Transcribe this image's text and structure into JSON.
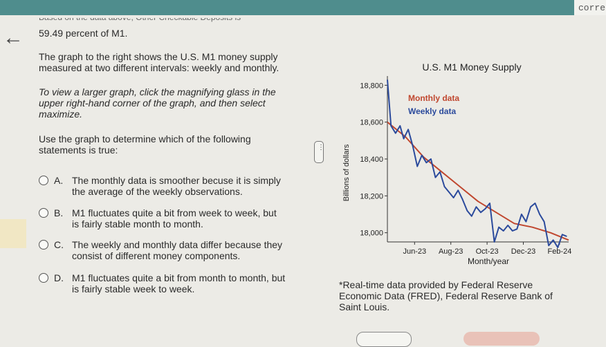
{
  "header": {
    "corner_text": "corre"
  },
  "question": {
    "cutoff_line": "Based on the data above, Other Checkable Deposits is",
    "percent_line": "59.49 percent of M1.",
    "intro": [
      "The graph to the right shows the U.S. M1 money supply",
      "measured at two different intervals: weekly and monthly."
    ],
    "instructions": [
      "To view a larger graph, click the magnifying glass in the",
      "upper right-hand corner of the graph, and then select",
      "maximize."
    ],
    "prompt": [
      "Use the graph to determine which of the following",
      "statements is true:"
    ]
  },
  "options": [
    {
      "letter": "A.",
      "lines": [
        "The monthly data is smoother becuse it is simply",
        "the average of the weekly observations."
      ]
    },
    {
      "letter": "B.",
      "lines": [
        "M1 fluctuates quite a bit from week to week, but",
        "is fairly stable month to month."
      ]
    },
    {
      "letter": "C.",
      "lines": [
        "The weekly and monthly data differ because they",
        "consist of different money components."
      ]
    },
    {
      "letter": "D.",
      "lines": [
        "M1 fluctuates quite a bit from month to month, but",
        "is fairly stable week to week."
      ]
    }
  ],
  "footnote": [
    "*Real-time data provided by Federal Reserve",
    "Economic Data (FRED), Federal Reserve Bank of",
    "Saint Louis."
  ],
  "colors": {
    "monthly": "#c0472f",
    "weekly": "#2b4a9c",
    "axis": "#333333"
  },
  "chart_data": {
    "type": "line",
    "title": "U.S. M1 Money Supply",
    "xlabel": "Month/year",
    "ylabel": "Billions of dollars",
    "ylim": [
      17950,
      18850
    ],
    "yticks": [
      18000,
      18200,
      18400,
      18600,
      18800
    ],
    "ytick_labels": [
      "18,000",
      "18,200",
      "18,400",
      "18,600",
      "18,800"
    ],
    "xticks": [
      1.5,
      3.5,
      5.5,
      7.5,
      9.5
    ],
    "xtick_labels": [
      "Jun-23",
      "Aug-23",
      "Oct-23",
      "Dec-23",
      "Feb-24"
    ],
    "xlim": [
      0,
      10
    ],
    "legend": [
      "Monthly data",
      "Weekly data"
    ],
    "legend_placement": "top",
    "series": [
      {
        "name": "Monthly data",
        "x": [
          0,
          1,
          2,
          3,
          4,
          5,
          6,
          7,
          8,
          9,
          10
        ],
        "values": [
          18600,
          18520,
          18410,
          18330,
          18250,
          18170,
          18110,
          18050,
          18030,
          18000,
          17960
        ]
      },
      {
        "name": "Weekly data",
        "x": [
          0,
          0.2,
          0.45,
          0.7,
          0.9,
          1.15,
          1.4,
          1.65,
          1.9,
          2.15,
          2.4,
          2.65,
          2.9,
          3.15,
          3.4,
          3.65,
          3.9,
          4.15,
          4.4,
          4.65,
          4.9,
          5.15,
          5.4,
          5.65,
          5.9,
          6.15,
          6.4,
          6.65,
          6.9,
          7.15,
          7.4,
          7.65,
          7.9,
          8.15,
          8.4,
          8.65,
          8.9,
          9.15,
          9.4,
          9.65,
          9.9
        ],
        "values": [
          18830,
          18580,
          18540,
          18580,
          18510,
          18560,
          18470,
          18360,
          18420,
          18380,
          18400,
          18300,
          18330,
          18250,
          18220,
          18190,
          18230,
          18180,
          18120,
          18090,
          18140,
          18110,
          18130,
          18160,
          17950,
          18030,
          18010,
          18040,
          18010,
          18020,
          18100,
          18060,
          18140,
          18160,
          18100,
          18060,
          17930,
          17960,
          17920,
          17990,
          17980
        ]
      }
    ]
  }
}
